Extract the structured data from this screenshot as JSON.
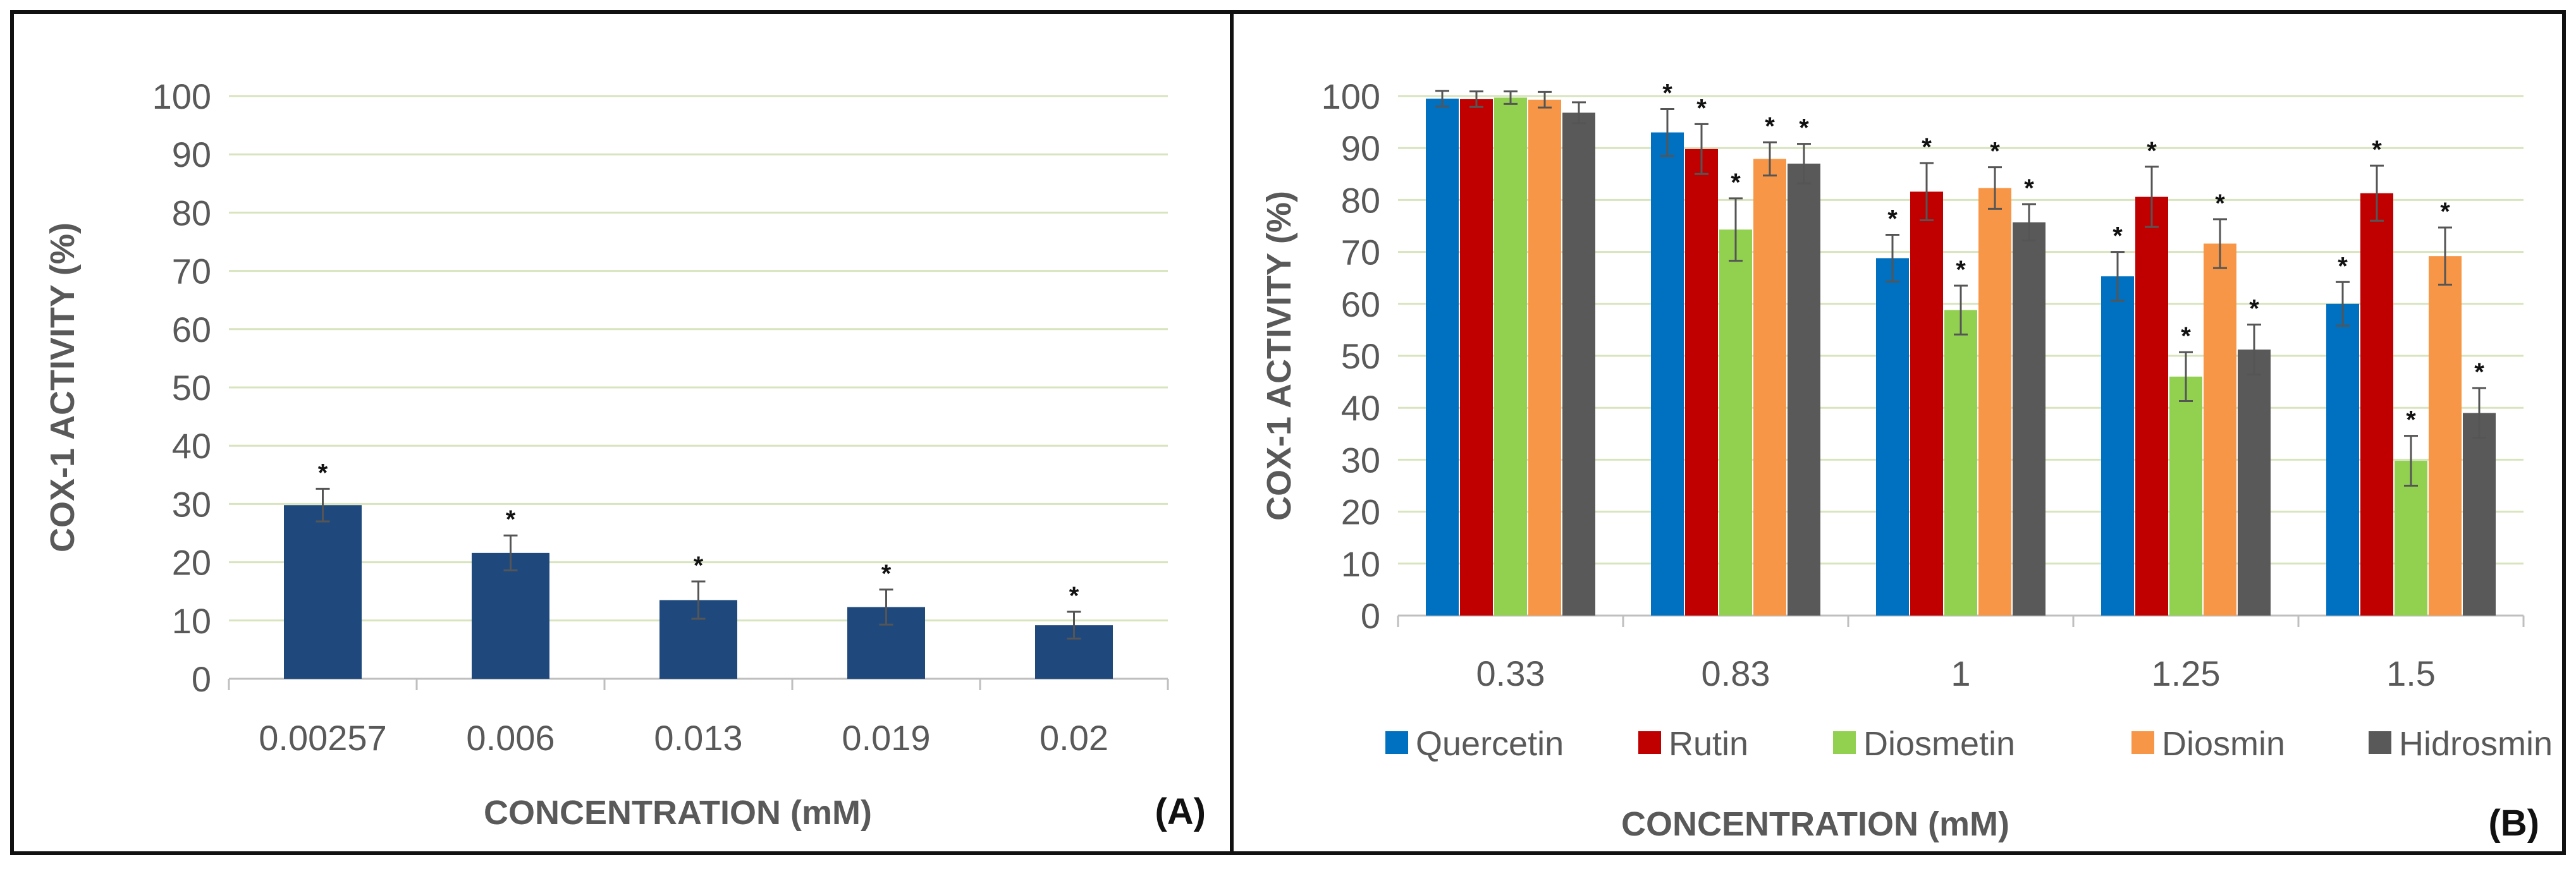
{
  "chart_data": [
    {
      "type": "bar",
      "panel_label": "(A)",
      "xlabel": "CONCENTRATION (mM)",
      "ylabel": "COX-1 ACTIVITY (%)",
      "ylim": [
        0,
        100
      ],
      "yticks": [
        "0",
        "10",
        "20",
        "30",
        "40",
        "50",
        "60",
        "70",
        "80",
        "90",
        "100"
      ],
      "grid": true,
      "categories": [
        "0.00257",
        "0.006",
        "0.013",
        "0.019",
        "0.02"
      ],
      "series": [
        {
          "name": "",
          "color": "#1f497d",
          "values": [
            29.8,
            21.6,
            13.5,
            12.3,
            9.2
          ],
          "errors": [
            2.8,
            3.0,
            3.2,
            3.0,
            2.3
          ],
          "significant": [
            "*",
            "*",
            "*",
            "*",
            "*"
          ]
        }
      ]
    },
    {
      "type": "bar",
      "panel_label": "(B)",
      "xlabel": "CONCENTRATION (mM)",
      "ylabel": "COX-1 ACTIVITY (%)",
      "ylim": [
        0,
        100
      ],
      "yticks": [
        "0",
        "10",
        "20",
        "30",
        "40",
        "50",
        "60",
        "70",
        "80",
        "90",
        "100"
      ],
      "grid": true,
      "legend_position": "bottom",
      "categories": [
        "0.33",
        "0.83",
        "1",
        "1.25",
        "1.5"
      ],
      "series": [
        {
          "name": "Quercetin",
          "color": "#0070c0",
          "values": [
            99.5,
            93.0,
            68.8,
            65.3,
            60.0
          ],
          "errors": [
            1.5,
            4.5,
            4.5,
            4.7,
            4.2
          ],
          "significant": [
            "",
            "*",
            "*",
            "*",
            "*"
          ]
        },
        {
          "name": "Rutin",
          "color": "#c00000",
          "values": [
            99.4,
            89.8,
            81.6,
            80.6,
            81.3
          ],
          "errors": [
            1.5,
            4.8,
            5.5,
            5.8,
            5.3
          ],
          "significant": [
            "",
            "*",
            "*",
            "*",
            "*"
          ]
        },
        {
          "name": "Diosmetin",
          "color": "#92d050",
          "values": [
            99.7,
            74.3,
            58.8,
            46.0,
            29.8
          ],
          "errors": [
            1.2,
            6.0,
            4.7,
            4.7,
            4.8
          ],
          "significant": [
            "",
            "*",
            "*",
            "*",
            "*"
          ]
        },
        {
          "name": "Diosmin",
          "color": "#f79646",
          "values": [
            99.3,
            87.9,
            82.3,
            71.6,
            69.2
          ],
          "errors": [
            1.5,
            3.2,
            4.0,
            4.7,
            5.5
          ],
          "significant": [
            "",
            "*",
            "*",
            "*",
            "*"
          ]
        },
        {
          "name": "Hidrosmin",
          "color": "#595959",
          "values": [
            96.8,
            87.0,
            75.7,
            51.2,
            39.0
          ],
          "errors": [
            2.0,
            3.8,
            3.5,
            4.8,
            4.8
          ],
          "significant": [
            "",
            "*",
            "*",
            "*",
            "*"
          ]
        }
      ]
    }
  ]
}
